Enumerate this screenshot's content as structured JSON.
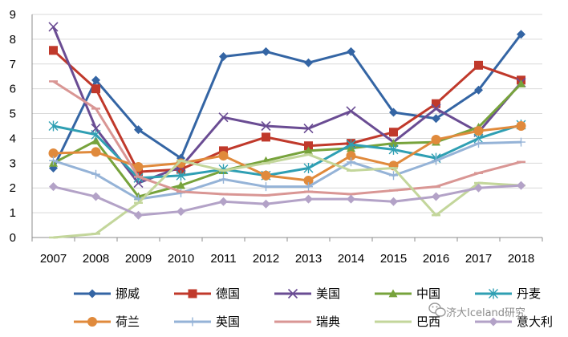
{
  "chart_data": {
    "type": "line",
    "title": "",
    "xlabel": "",
    "ylabel": "",
    "ylim": [
      0,
      9
    ],
    "grid": true,
    "legend_position": "bottom",
    "x": [
      "2007",
      "2008",
      "2009",
      "2010",
      "2011",
      "2012",
      "2013",
      "2014",
      "2015",
      "2016",
      "2017",
      "2018"
    ],
    "y_ticks": [
      "0",
      "1",
      "2",
      "3",
      "4",
      "5",
      "6",
      "7",
      "8",
      "9"
    ],
    "series": [
      {
        "name": "挪威",
        "color": "#3465a4",
        "marker": "diamond",
        "values": [
          2.8,
          6.35,
          4.35,
          3.2,
          7.3,
          7.5,
          7.05,
          7.5,
          5.05,
          4.8,
          5.95,
          8.2
        ]
      },
      {
        "name": "德国",
        "color": "#c0392b",
        "marker": "square",
        "values": [
          7.55,
          6.0,
          2.65,
          2.75,
          3.5,
          4.05,
          3.7,
          3.8,
          4.25,
          5.4,
          6.95,
          6.35
        ]
      },
      {
        "name": "美国",
        "color": "#6a4c93",
        "marker": "x",
        "values": [
          8.5,
          4.4,
          2.2,
          2.85,
          4.85,
          4.5,
          4.4,
          5.1,
          3.85,
          5.2,
          4.25,
          6.25
        ]
      },
      {
        "name": "中国",
        "color": "#77a33c",
        "marker": "triangle",
        "values": [
          3.0,
          3.9,
          1.65,
          2.1,
          2.7,
          3.1,
          3.5,
          3.6,
          3.8,
          3.85,
          4.45,
          6.2
        ]
      },
      {
        "name": "丹麦",
        "color": "#2f9fb3",
        "marker": "star",
        "values": [
          4.5,
          4.15,
          2.4,
          2.5,
          2.75,
          2.5,
          2.8,
          3.75,
          3.55,
          3.2,
          4.0,
          4.55
        ]
      },
      {
        "name": "荷兰",
        "color": "#e08a3c",
        "marker": "circle",
        "values": [
          3.4,
          3.45,
          2.85,
          3.0,
          3.3,
          2.5,
          2.3,
          3.3,
          2.9,
          3.95,
          4.3,
          4.5
        ]
      },
      {
        "name": "英国",
        "color": "#95b3d7",
        "marker": "plus",
        "values": [
          3.1,
          2.55,
          1.55,
          1.8,
          2.35,
          2.05,
          2.05,
          3.05,
          2.5,
          3.1,
          3.8,
          3.85
        ]
      },
      {
        "name": "瑞典",
        "color": "#d99694",
        "marker": "dash",
        "values": [
          6.3,
          5.2,
          2.45,
          1.85,
          1.75,
          1.7,
          1.85,
          1.75,
          1.9,
          2.05,
          2.6,
          3.05
        ]
      },
      {
        "name": "巴西",
        "color": "#c3d69b",
        "marker": "dash",
        "values": [
          0.0,
          0.15,
          1.4,
          3.1,
          2.7,
          3.0,
          3.35,
          2.7,
          2.8,
          0.9,
          2.2,
          2.1
        ]
      },
      {
        "name": "意大利",
        "color": "#b3a2c7",
        "marker": "diamond",
        "values": [
          2.05,
          1.65,
          0.9,
          1.05,
          1.45,
          1.35,
          1.55,
          1.55,
          1.45,
          1.65,
          2.0,
          2.1
        ]
      }
    ]
  },
  "watermark": {
    "text": "济大Iceland研究"
  }
}
